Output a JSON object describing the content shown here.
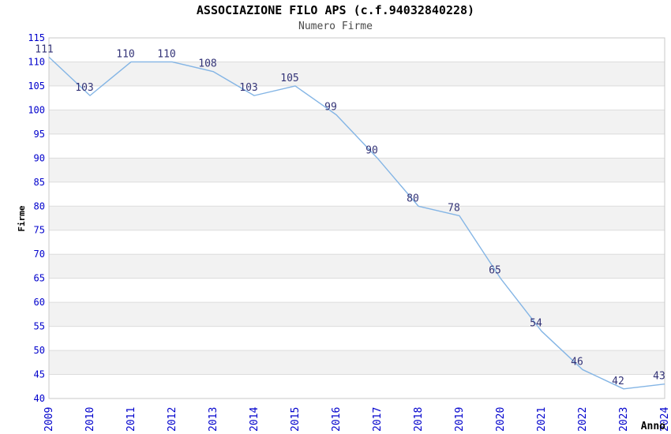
{
  "header": {
    "title": "ASSOCIAZIONE FILO APS (c.f.94032840228)",
    "subtitle": "Numero Firme"
  },
  "chart_data": {
    "type": "line",
    "title": "ASSOCIAZIONE FILO APS (c.f.94032840228)",
    "subtitle": "Numero Firme",
    "xlabel": "Anno",
    "ylabel": "Firme",
    "x": [
      "2009",
      "2010",
      "2011",
      "2012",
      "2013",
      "2014",
      "2015",
      "2016",
      "2017",
      "2018",
      "2019",
      "2020",
      "2021",
      "2022",
      "2023",
      "2024"
    ],
    "values": [
      111,
      103,
      110,
      110,
      108,
      103,
      105,
      99,
      90,
      80,
      78,
      65,
      54,
      46,
      42,
      43
    ],
    "ylim": [
      40,
      115
    ],
    "ytick_step": 5,
    "yticks": [
      40,
      45,
      50,
      55,
      60,
      65,
      70,
      75,
      80,
      85,
      90,
      95,
      100,
      105,
      110,
      115
    ],
    "grid": "horizontal gridlines with alternating gray bands",
    "legend_position": "none",
    "data_labels_shown": true,
    "x_tick_rotation": "vertical (reads bottom-to-top)",
    "colors": {
      "line": "#84B5E5",
      "tick_label": "#0000CC",
      "data_label": "#333377",
      "band_gray": "#F2F2F2",
      "gridline": "#DCDCDC",
      "plot_border": "#C8C8C8",
      "title": "#000000",
      "subtitle": "#4A4A4A",
      "axis_title": "#000000",
      "background": "#FFFFFF"
    }
  }
}
